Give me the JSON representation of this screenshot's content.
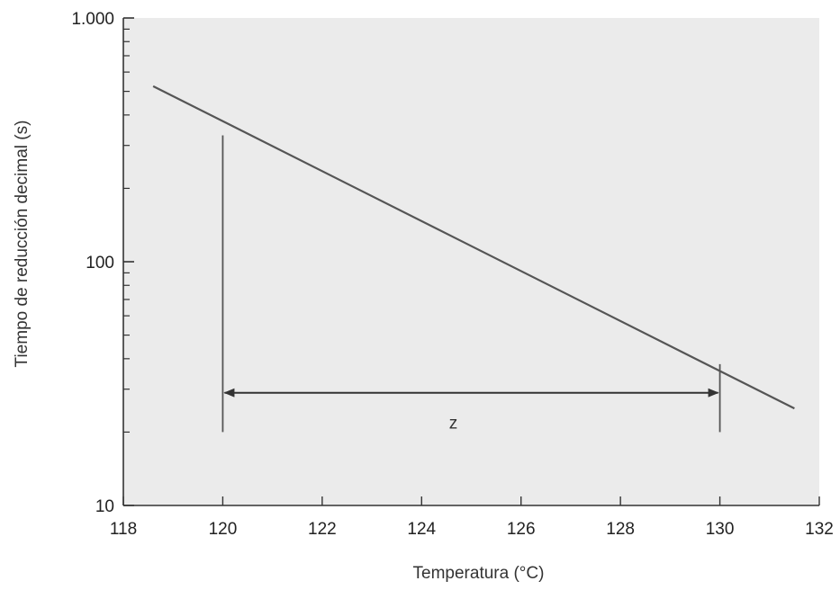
{
  "chart_data": {
    "type": "line",
    "title": "",
    "xlabel": "Temperatura (°C)",
    "ylabel": "Tiempo de reducción decimal (s)",
    "xlim": [
      118,
      132
    ],
    "ylim": [
      10,
      1000
    ],
    "yscale": "log",
    "grid": false,
    "x_ticks": [
      118,
      120,
      122,
      124,
      126,
      128,
      130,
      132
    ],
    "x_tick_labels": [
      "118",
      "120",
      "122",
      "124",
      "126",
      "128",
      "130",
      "132"
    ],
    "y_ticks": [
      10,
      100,
      1000
    ],
    "y_tick_labels": [
      "10",
      "100",
      "1.000"
    ],
    "series": [
      {
        "x": [
          118.6,
          131.5
        ],
        "y": [
          525,
          25
        ]
      }
    ],
    "annotations": [
      {
        "type": "double-arrow",
        "label": "z",
        "x_start": 120,
        "x_end": 130,
        "y": 29
      }
    ],
    "reference_lines": [
      {
        "x": 120,
        "y_from": 20,
        "y_to": 330
      },
      {
        "x": 130,
        "y_from": 20,
        "y_to": 38
      }
    ],
    "colors": {
      "plot_background": "#ebebeb",
      "line": "#555555",
      "axis": "#333333"
    }
  }
}
